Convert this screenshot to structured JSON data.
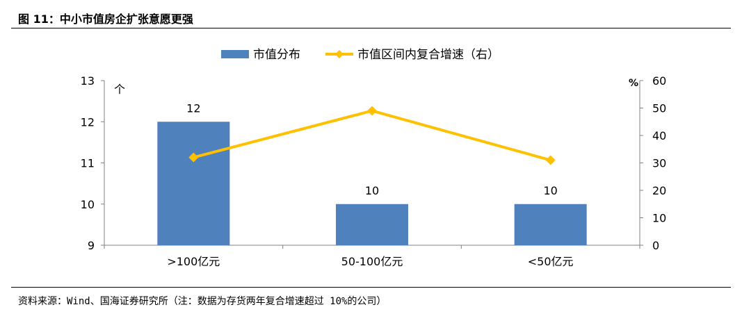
{
  "figure": {
    "title": "图 11：中小市值房企扩张意愿更强",
    "source": "资料来源：Wind、国海证券研究所（注：数据为存货两年复合增速超过 10%的公司）"
  },
  "colors": {
    "bar": "#4f81bd",
    "line": "#ffc000",
    "axis": "#808080"
  },
  "chart_data": {
    "type": "bar",
    "categories": [
      ">100亿元",
      "50-100亿元",
      "<50亿元"
    ],
    "series": [
      {
        "name": "市值分布",
        "type": "bar",
        "axis": "left",
        "values": [
          12,
          10,
          10
        ],
        "data_labels": [
          "12",
          "10",
          "10"
        ]
      },
      {
        "name": "市值区间内复合增速（右）",
        "type": "line",
        "axis": "right",
        "values": [
          32,
          49,
          31
        ]
      }
    ],
    "y_left": {
      "unit": "个",
      "range": [
        9,
        13
      ],
      "ticks": [
        9,
        10,
        11,
        12,
        13
      ]
    },
    "y_right": {
      "unit": "%",
      "range": [
        0,
        60
      ],
      "ticks": [
        0,
        10,
        20,
        30,
        40,
        50,
        60
      ]
    },
    "legend": "top-center",
    "grid": false
  }
}
